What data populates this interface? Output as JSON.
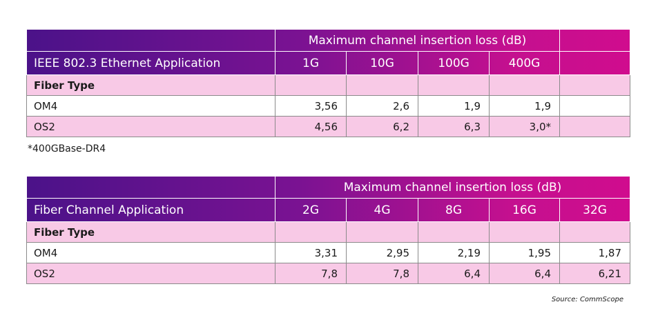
{
  "table1": {
    "caption": "Maximum channel insertion loss (dB)",
    "application": "IEEE 802.3 Ethernet Application",
    "speeds": [
      "1G",
      "10G",
      "100G",
      "400G",
      ""
    ],
    "fiber_type_label": "Fiber Type",
    "rows": [
      {
        "type": "OM4",
        "values": [
          "3,56",
          "2,6",
          "1,9",
          "1,9",
          ""
        ]
      },
      {
        "type": "OS2",
        "values": [
          "4,56",
          "6,2",
          "6,3",
          "3,0*",
          ""
        ]
      }
    ]
  },
  "footnote": "*400GBase-DR4",
  "table2": {
    "caption": "Maximum channel insertion loss (dB)",
    "application": "Fiber Channel Application",
    "speeds": [
      "2G",
      "4G",
      "8G",
      "16G",
      "32G"
    ],
    "fiber_type_label": "Fiber Type",
    "rows": [
      {
        "type": "OM4",
        "values": [
          "3,31",
          "2,95",
          "2,19",
          "1,95",
          "1,87"
        ]
      },
      {
        "type": "OS2",
        "values": [
          "7,8",
          "7,8",
          "6,4",
          "6,4",
          "6,21"
        ]
      }
    ]
  },
  "source": "Source: CommScope",
  "colors": {
    "header_gradient_start": "#4b1289",
    "header_gradient_end": "#d00c8e",
    "pink_row": "#f8c9e6"
  }
}
